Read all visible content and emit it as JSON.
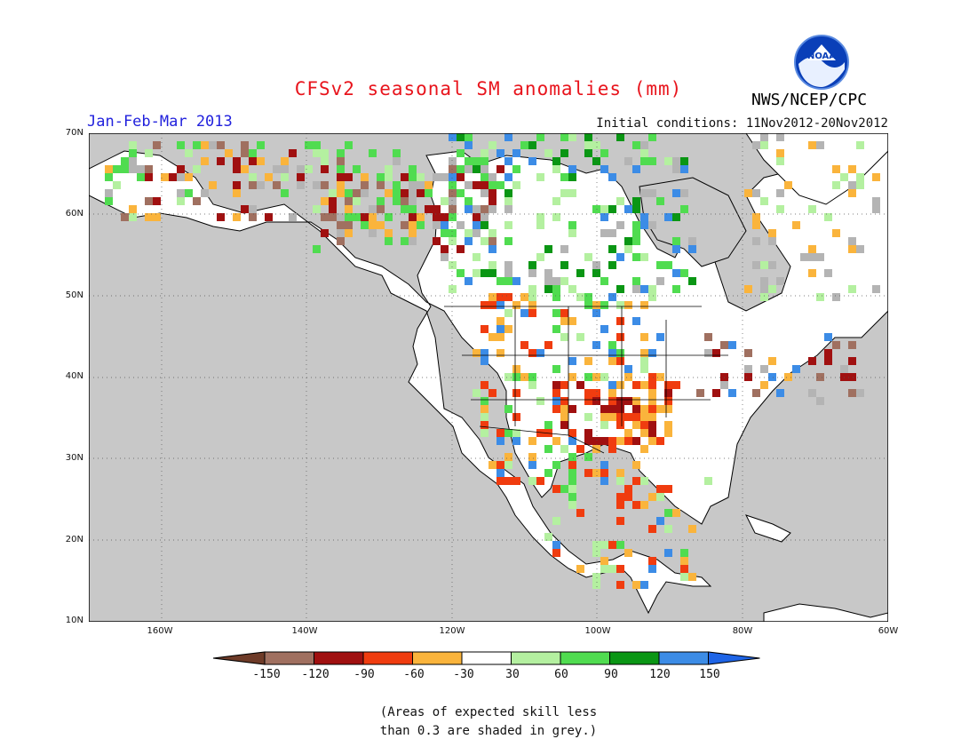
{
  "header": {
    "title": "CFSv2 seasonal SM anomalies (mm)",
    "season": "Jan-Feb-Mar 2013",
    "initial_conditions": "Initial conditions: 11Nov2012-20Nov2012",
    "agency": "NWS/NCEP/CPC",
    "logo_text": "NOAA"
  },
  "map": {
    "projection": "latitude-longitude",
    "lon_range": [
      -172,
      -60
    ],
    "lat_range": [
      10,
      70
    ],
    "lat_ticks": [
      "10N",
      "20N",
      "30N",
      "40N",
      "50N",
      "60N",
      "70N"
    ],
    "lon_ticks": [
      "160W",
      "140W",
      "120W",
      "100W",
      "80W",
      "60W"
    ],
    "grid": "dotted",
    "ocean_color": "#c8c8c8",
    "land_color": "#ffffff"
  },
  "legend": {
    "labels": [
      "-150",
      "-120",
      "-90",
      "-60",
      "-30",
      "30",
      "60",
      "90",
      "120",
      "150"
    ],
    "colors": [
      "#6e3b28",
      "#a07060",
      "#a01010",
      "#f03c0f",
      "#fab43c",
      "#ffffff",
      "#b4f0a0",
      "#50dc50",
      "#0a9614",
      "#3c8ce6",
      "#1e64e6"
    ]
  },
  "footnote": {
    "line1": "(Areas of expected skill less",
    "line2": "than 0.3 are shaded in grey.)"
  }
}
